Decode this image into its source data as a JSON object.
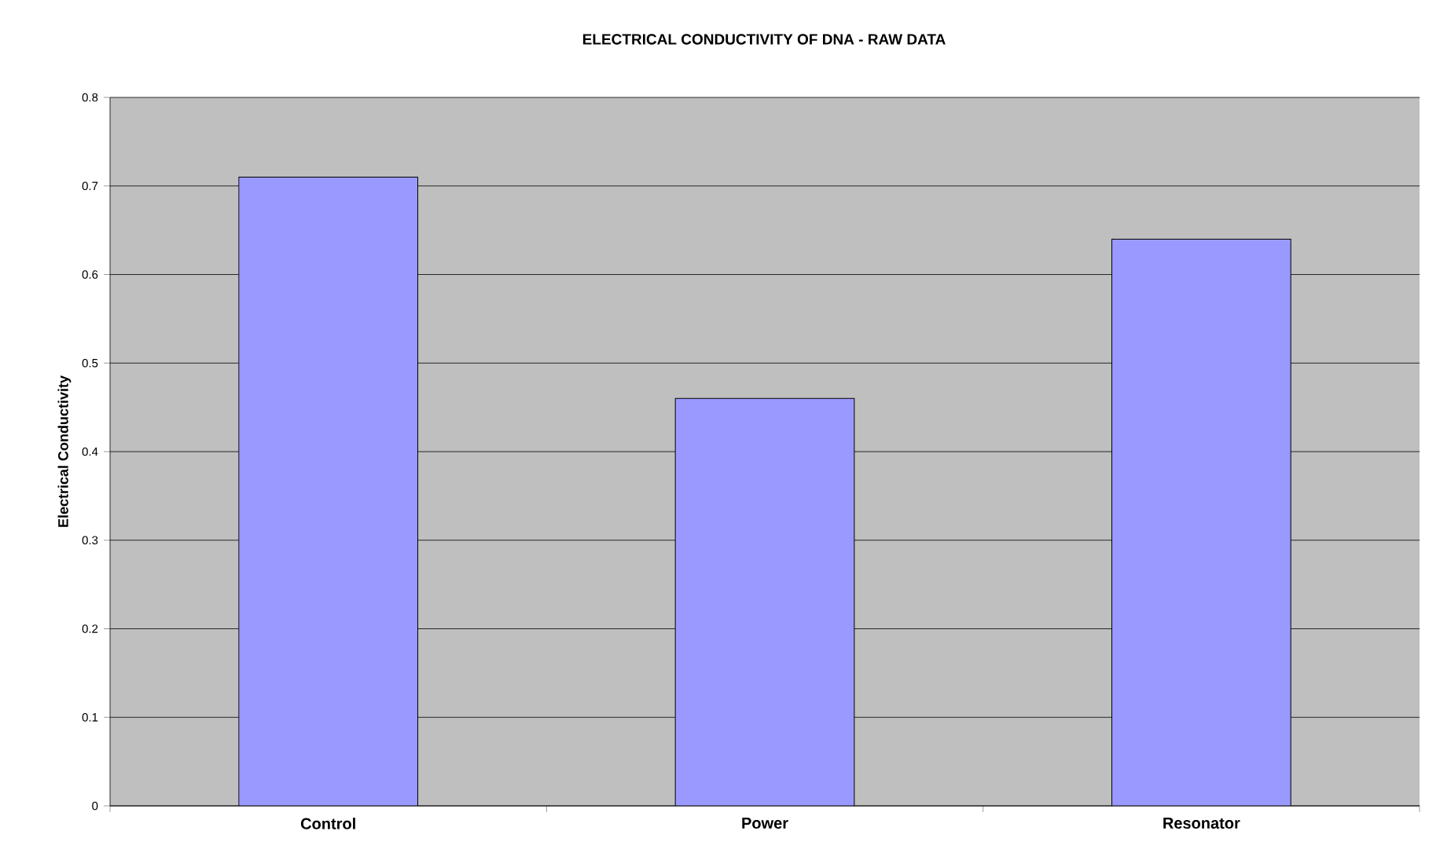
{
  "chart_data": {
    "type": "bar",
    "title": "ELECTRICAL CONDUCTIVITY OF DNA - RAW DATA",
    "ylabel": "Electrical Conductivity",
    "categories": [
      "Control",
      "Power",
      "Resonator"
    ],
    "values": [
      0.71,
      0.46,
      0.64
    ],
    "color": "#9999ff",
    "ylim": [
      0,
      0.8
    ],
    "yticks": [
      0,
      0.1,
      0.2,
      0.3,
      0.4,
      0.5,
      0.6,
      0.7,
      0.8
    ],
    "grid": "y"
  }
}
